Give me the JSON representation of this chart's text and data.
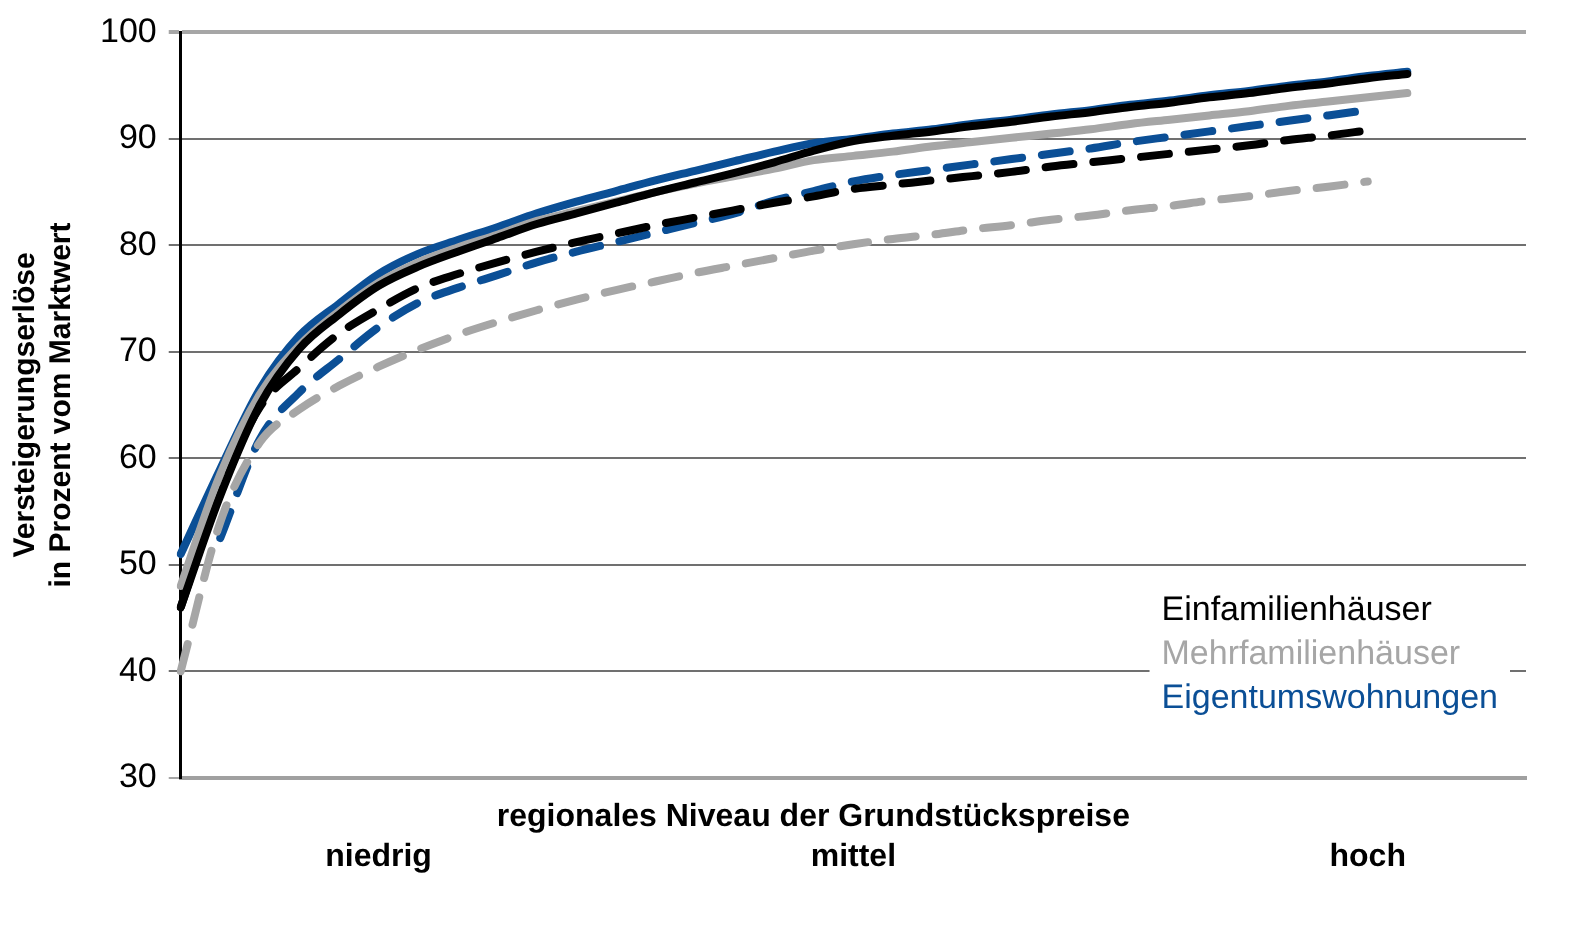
{
  "chart_data": {
    "type": "line",
    "ylabel": "Versteigerungserlöse\nin Prozent vom Marktwert",
    "xlabel": "regionales Niveau der Grundstückspreise",
    "categories": [
      null,
      null,
      null,
      null,
      null,
      "niedrig",
      null,
      null,
      null,
      null,
      null,
      null,
      null,
      null,
      null,
      null,
      null,
      "mittel",
      null,
      null,
      null,
      null,
      null,
      null,
      null,
      null,
      null,
      null,
      null,
      null,
      "hoch",
      null,
      null,
      null,
      null
    ],
    "ylim": [
      30,
      100
    ],
    "yticks": [
      30,
      40,
      50,
      60,
      70,
      80,
      90,
      100
    ],
    "grid": "y",
    "legend": "bottom right",
    "marker": "none",
    "series": [
      {
        "name": "Einfamilienhäuser",
        "color": "#000000",
        "line_style": "solid",
        "values": [
          46,
          56.5,
          65,
          70.3,
          73.5,
          76.2,
          78,
          79.4,
          80.7,
          82,
          83,
          84,
          85,
          85.9,
          86.8,
          87.8,
          88.9,
          89.8,
          90.3,
          90.7,
          91.2,
          91.6,
          92.1,
          92.5,
          93,
          93.4,
          93.9,
          94.3,
          94.8,
          95.2,
          95.7,
          96.1,
          null,
          null,
          null
        ]
      },
      {
        "name": "Mehrfamilienhäuser",
        "color": "#a6a6a6",
        "line_style": "solid",
        "values": [
          48,
          58.5,
          66,
          70.6,
          73.8,
          76.5,
          78.4,
          79.8,
          81,
          82.3,
          83.2,
          84.1,
          85,
          85.8,
          86.5,
          87.2,
          88,
          88.4,
          88.8,
          89.3,
          89.7,
          90.1,
          90.5,
          90.9,
          91.4,
          91.8,
          92.2,
          92.6,
          93.1,
          93.5,
          93.9,
          94.3,
          null,
          null,
          null
        ]
      },
      {
        "name": "Eigentumswohnungen",
        "color": "#0b4f96",
        "line_style": "solid",
        "values": [
          51,
          59,
          66.5,
          71.5,
          74.5,
          77.3,
          79.2,
          80.5,
          81.7,
          83,
          84.1,
          85.1,
          86.1,
          87,
          87.9,
          88.8,
          89.6,
          90,
          90.5,
          90.9,
          91.4,
          91.8,
          92.3,
          92.7,
          93.2,
          93.6,
          94.1,
          94.5,
          95,
          95.4,
          95.9,
          96.3,
          null,
          null,
          null
        ]
      },
      {
        "color": "#000000",
        "line_style": "dashed",
        "values": [
          46,
          57,
          64.8,
          68.5,
          71.7,
          74,
          76,
          77.3,
          78.4,
          79.4,
          80.3,
          81.1,
          81.9,
          82.6,
          83.3,
          84,
          84.6,
          85.3,
          85.7,
          86.1,
          86.5,
          86.9,
          87.4,
          87.8,
          88.2,
          88.6,
          89,
          89.4,
          89.9,
          90.3,
          90.8,
          null,
          null,
          null,
          null
        ]
      },
      {
        "color": "#a6a6a6",
        "line_style": "dashed",
        "values": [
          40,
          54,
          61.5,
          64.6,
          66.8,
          68.6,
          70.2,
          71.6,
          72.8,
          73.9,
          74.9,
          75.8,
          76.6,
          77.4,
          78.1,
          78.8,
          79.5,
          80.1,
          80.6,
          81,
          81.5,
          81.9,
          82.4,
          82.8,
          83.3,
          83.7,
          84.2,
          84.6,
          85.1,
          85.5,
          86,
          null,
          null,
          null,
          null
        ]
      },
      {
        "color": "#0b4f96",
        "line_style": "dashed",
        "values": [
          null,
          52.5,
          61.8,
          66.2,
          69.3,
          72.3,
          74.6,
          76,
          77.2,
          78.4,
          79.4,
          80.3,
          81.2,
          82.1,
          83,
          84.2,
          85.1,
          86,
          86.6,
          87.1,
          87.6,
          88.1,
          88.6,
          89.1,
          89.7,
          90.2,
          90.7,
          91.2,
          91.7,
          92.2,
          92.7,
          null,
          null,
          null,
          null
        ]
      }
    ]
  }
}
